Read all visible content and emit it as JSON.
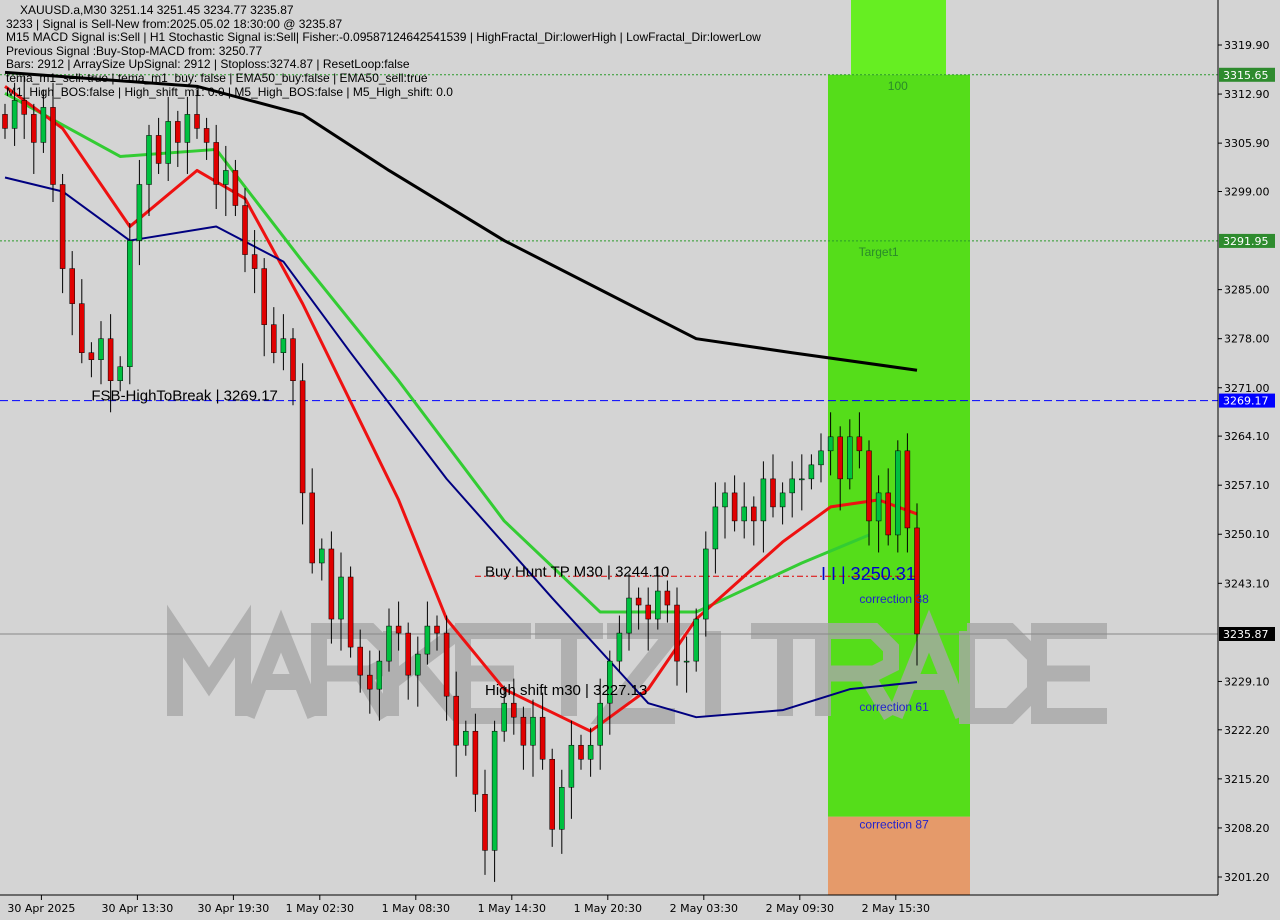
{
  "header": {
    "symbol_line": "XAUUSD.a,M30  3251.14 3251.45 3234.77 3235.87",
    "lines": [
      "3233 | Signal is Sell-New from:2025.05.02 18:30:00 @ 3235.87",
      "M15 MACD Signal is:Sell | H1 Stochastic Signal is:Sell| Fisher:-0.09587124642541539 | HighFractal_Dir:lowerHigh | LowFractal_Dir:lowerLow",
      "Previous Signal :Buy-Stop-MACD from: 3250.77",
      "Bars: 2912 | ArraySize UpSignal: 2912 | Stoploss:3274.87 | ResetLoop:false",
      "tema_m1_sell: true | tema_m1_buy: false | EMA50_buy:false | EMA50_sell:true",
      "M1_High_BOS:false | High_shift_m1: 0.0 | M5_High_BOS:false | M5_High_shift: 0.0"
    ]
  },
  "watermark": "MARKETZITRADE",
  "colors": {
    "bull": "#00c040",
    "bear": "#e00000",
    "zone_green": "#55dd1a",
    "zone_top": "#66ee22",
    "zone_orange": "#e59a6a",
    "ma200": "#000000",
    "ma_green": "#33cc33",
    "ma_red": "#ee1111",
    "ma_navy": "#000080"
  },
  "chart_data": {
    "type": "candlestick",
    "ylim": [
      3198,
      3325
    ],
    "yticks": [
      "3319.90",
      "3312.90",
      "3305.90",
      "3299.00",
      "3285.00",
      "3278.00",
      "3271.00",
      "3264.10",
      "3257.10",
      "3250.10",
      "3243.10",
      "3229.10",
      "3222.20",
      "3215.20",
      "3208.20",
      "3201.20"
    ],
    "xticks": [
      {
        "bar": 4,
        "label": "30 Apr 2025"
      },
      {
        "bar": 14,
        "label": "30 Apr 13:30"
      },
      {
        "bar": 24,
        "label": "30 Apr 19:30"
      },
      {
        "bar": 33,
        "label": "1 May 02:30"
      },
      {
        "bar": 43,
        "label": "1 May 08:30"
      },
      {
        "bar": 53,
        "label": "1 May 14:30"
      },
      {
        "bar": 63,
        "label": "1 May 20:30"
      },
      {
        "bar": 73,
        "label": "2 May 03:30"
      },
      {
        "bar": 83,
        "label": "2 May 09:30"
      },
      {
        "bar": 93,
        "label": "2 May 15:30"
      }
    ],
    "closes": [
      3308,
      3312,
      3310,
      3306,
      3311,
      3300,
      3288,
      3283,
      3276,
      3275,
      3278,
      3272,
      3274,
      3292,
      3300,
      3307,
      3303,
      3309,
      3306,
      3310,
      3308,
      3306,
      3300,
      3302,
      3297,
      3290,
      3288,
      3280,
      3276,
      3278,
      3272,
      3256,
      3246,
      3248,
      3238,
      3244,
      3234,
      3230,
      3228,
      3232,
      3237,
      3236,
      3230,
      3233,
      3237,
      3236,
      3227,
      3220,
      3222,
      3213,
      3205,
      3222,
      3226,
      3224,
      3220,
      3224,
      3218,
      3208,
      3214,
      3220,
      3218,
      3220,
      3226,
      3232,
      3236,
      3241,
      3240,
      3238,
      3242,
      3240,
      3232,
      3232,
      3238,
      3248,
      3254,
      3256,
      3252,
      3254,
      3252,
      3258,
      3254,
      3256,
      3258,
      3258,
      3260,
      3262,
      3264,
      3258,
      3264,
      3262,
      3252,
      3256,
      3250,
      3262,
      3251,
      3235.87
    ],
    "moving_averages": [
      {
        "color": "ma200",
        "points": [
          [
            0,
            3316
          ],
          [
            10,
            3315
          ],
          [
            20,
            3314
          ],
          [
            31,
            3310
          ],
          [
            40,
            3302
          ],
          [
            52,
            3292
          ],
          [
            62,
            3285
          ],
          [
            72,
            3278
          ],
          [
            82,
            3276
          ],
          [
            95,
            3273.5
          ]
        ]
      },
      {
        "color": "ma_green",
        "points": [
          [
            0,
            3313
          ],
          [
            12,
            3304
          ],
          [
            22,
            3305
          ],
          [
            31,
            3289
          ],
          [
            41,
            3272
          ],
          [
            52,
            3252
          ],
          [
            62,
            3239
          ],
          [
            72,
            3239
          ],
          [
            83,
            3246
          ],
          [
            90,
            3250
          ]
        ]
      },
      {
        "color": "ma_red",
        "points": [
          [
            0,
            3314
          ],
          [
            6,
            3308
          ],
          [
            13,
            3294
          ],
          [
            20,
            3302
          ],
          [
            25,
            3298
          ],
          [
            31,
            3283
          ],
          [
            41,
            3255
          ],
          [
            46,
            3238
          ],
          [
            52,
            3228
          ],
          [
            61,
            3222
          ],
          [
            67,
            3228
          ],
          [
            72,
            3238
          ],
          [
            81,
            3249
          ],
          [
            86,
            3254
          ],
          [
            91,
            3255
          ],
          [
            95,
            3253
          ]
        ]
      },
      {
        "color": "ma_navy",
        "points": [
          [
            0,
            3301
          ],
          [
            6,
            3299
          ],
          [
            13,
            3292
          ],
          [
            22,
            3294
          ],
          [
            29,
            3289
          ],
          [
            36,
            3276
          ],
          [
            46,
            3258
          ],
          [
            57,
            3241
          ],
          [
            67,
            3226
          ],
          [
            72,
            3224
          ],
          [
            81,
            3225
          ],
          [
            88,
            3228
          ],
          [
            95,
            3229
          ]
        ]
      }
    ],
    "levels": [
      {
        "price": 3315.65,
        "label": "3315.65",
        "style": "green-dotted",
        "tag_bg": "#2e8b2e"
      },
      {
        "price": 3291.95,
        "label": "3291.95",
        "style": "green-dotted",
        "tag_bg": "#2e8b2e"
      },
      {
        "price": 3269.17,
        "label": "3269.17",
        "style": "blue-dashed",
        "tag_bg": "#0000ff"
      },
      {
        "price": 3244.1,
        "label": "",
        "style": "red-dashdot",
        "tag_bg": ""
      },
      {
        "price": 3235.87,
        "label": "3235.87",
        "style": "gray-solid",
        "tag_bg": "#000000"
      }
    ],
    "annotations": [
      {
        "text": "FSB-HighToBreak | 3269.17",
        "bar": 9,
        "price": 3269.17,
        "color": "#000"
      },
      {
        "text": "Buy Hunt TP M30 | 3244.10",
        "bar": 50,
        "price": 3244.1,
        "color": "#000"
      },
      {
        "text": "High shift m30 | 3227.13",
        "bar": 50,
        "price": 3227.13,
        "color": "#000"
      },
      {
        "text": "I I | 3250.31",
        "bar": 85,
        "price": 3243.6,
        "color": "#0000cc"
      },
      {
        "text": "100",
        "bar": 93,
        "price": 3313.5,
        "color": "#2a8a2a"
      },
      {
        "text": "Target1",
        "bar": 91,
        "price": 3289.8,
        "color": "#2a8a2a"
      },
      {
        "text": "correction 38",
        "bar": 89,
        "price": 3240.3,
        "color": "#2222cc"
      },
      {
        "text": "correction 61",
        "bar": 89,
        "price": 3224.9,
        "color": "#2222cc"
      },
      {
        "text": "correction 87",
        "bar": 89,
        "price": 3208.1,
        "color": "#2222cc"
      }
    ],
    "zone": {
      "top": 3315.65,
      "mid": 3209.8,
      "bottom": 3198
    }
  }
}
